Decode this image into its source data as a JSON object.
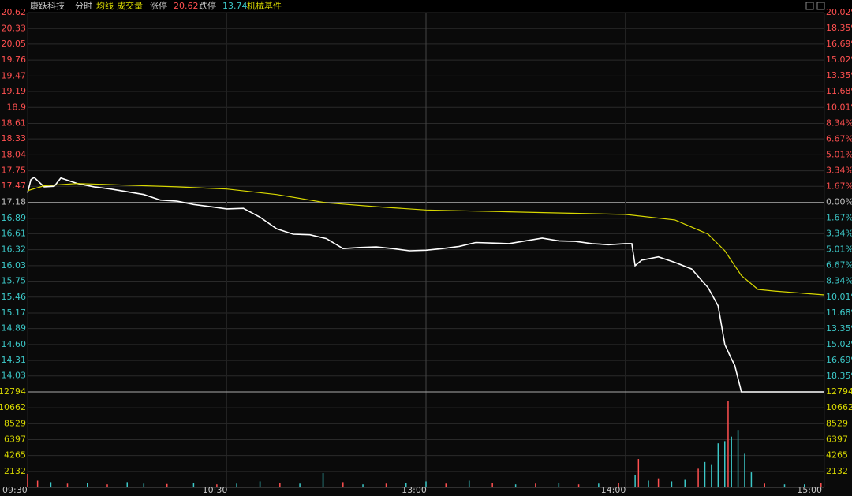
{
  "header": {
    "name": "康跃科技",
    "mode": "分时",
    "limit_up_label": "涨停",
    "limit_up": 20.62,
    "limit_down_label": "跌停",
    "limit_down": 13.74,
    "sector": "机械基件"
  },
  "chart_data": [
    {
      "type": "line",
      "xlim": [
        0,
        240
      ],
      "xticks": [
        {
          "value": 0,
          "label": "09:30"
        },
        {
          "value": 60,
          "label": "10:30"
        },
        {
          "value": 120,
          "label": "13:00"
        },
        {
          "value": 180,
          "label": "14:00"
        },
        {
          "value": 240,
          "label": "15:00"
        }
      ],
      "ylim": [
        13.74,
        20.62
      ],
      "yticks": [
        20.62,
        20.33,
        20.05,
        19.76,
        19.47,
        19.19,
        18.9,
        {
          "value": 18.61,
          "label": "18.61"
        },
        18.33,
        18.04,
        17.75,
        17.47,
        17.18,
        16.89,
        16.61,
        16.32,
        16.03,
        15.75,
        15.46,
        15.17,
        14.89,
        {
          "value": 14.6,
          "label": "14.60"
        },
        14.31,
        14.03
      ],
      "y2lim": [
        -20.02,
        20.02
      ],
      "y2ticks": [
        {
          "value": 20.02,
          "label": "20.02%"
        },
        {
          "value": 18.35,
          "label": "18.35%"
        },
        {
          "value": 16.69,
          "label": "16.69%"
        },
        {
          "value": 15.02,
          "label": "15.02%"
        },
        {
          "value": 13.35,
          "label": "13.35%"
        },
        {
          "value": 11.68,
          "label": "11.68%"
        },
        {
          "value": 10.01,
          "label": "10.01%"
        },
        {
          "value": 8.34,
          "label": "8.34%"
        },
        {
          "value": 6.67,
          "label": "6.67%"
        },
        {
          "value": 5.01,
          "label": "5.01%"
        },
        {
          "value": 3.34,
          "label": "3.34%"
        },
        {
          "value": 1.67,
          "label": "1.67%"
        },
        {
          "value": 0,
          "label": "0.00%"
        },
        {
          "value": -1.67,
          "label": "1.67%"
        },
        {
          "value": -3.34,
          "label": "3.34%"
        },
        {
          "value": -5.01,
          "label": "5.01%"
        },
        {
          "value": -6.67,
          "label": "6.67%"
        },
        {
          "value": -8.34,
          "label": "8.34%"
        },
        {
          "value": -10.01,
          "label": "10.01%"
        },
        {
          "value": -11.68,
          "label": "11.68%"
        },
        {
          "value": -13.35,
          "label": "13.35%"
        },
        {
          "value": -15.02,
          "label": "15.02%"
        },
        {
          "value": -16.69,
          "label": "16.69%"
        },
        {
          "value": -18.35,
          "label": "18.35%"
        }
      ],
      "up_color": "#ff5050",
      "down_color": "#3cc8c8",
      "flat_color": "#c0c0c0",
      "series": [
        {
          "color": "#ffffff",
          "x": [
            0,
            1,
            2,
            5,
            8,
            10,
            15,
            20,
            25,
            30,
            35,
            40,
            45,
            50,
            55,
            60,
            65,
            70,
            75,
            80,
            85,
            90,
            95,
            100,
            105,
            110,
            115,
            120,
            125,
            130,
            135,
            140,
            145,
            150,
            155,
            160,
            165,
            170,
            175,
            180,
            182,
            183,
            185,
            190,
            195,
            200,
            205,
            208,
            210,
            212,
            213,
            215,
            220,
            225,
            230,
            235,
            240
          ],
          "values": [
            17.35,
            17.59,
            17.63,
            17.46,
            17.47,
            17.62,
            17.52,
            17.46,
            17.42,
            17.37,
            17.32,
            17.22,
            17.2,
            17.14,
            17.1,
            17.06,
            17.07,
            16.91,
            16.7,
            16.6,
            16.59,
            16.52,
            16.34,
            16.36,
            16.37,
            16.34,
            16.3,
            16.31,
            16.34,
            16.38,
            16.45,
            16.44,
            16.43,
            16.48,
            16.53,
            16.48,
            16.47,
            16.43,
            16.41,
            16.43,
            16.43,
            16.03,
            16.13,
            16.19,
            16.09,
            15.97,
            15.63,
            15.3,
            14.6,
            14.34,
            14.22,
            13.74,
            13.74,
            13.74,
            13.74,
            13.74,
            13.74
          ]
        },
        {
          "name": "均线",
          "color": "#d8d800",
          "x": [
            0,
            5,
            15,
            30,
            45,
            60,
            75,
            90,
            105,
            120,
            150,
            180,
            195,
            205,
            210,
            215,
            220,
            225,
            240
          ],
          "values": [
            17.39,
            17.48,
            17.52,
            17.49,
            17.46,
            17.42,
            17.32,
            17.17,
            17.1,
            17.04,
            17.0,
            16.96,
            16.86,
            16.6,
            16.3,
            15.85,
            15.6,
            15.57,
            15.5
          ]
        }
      ]
    },
    {
      "type": "bar",
      "title": "成交量",
      "color": "#d8d800",
      "xlim": [
        0,
        240
      ],
      "ylim": [
        0,
        12794
      ],
      "yticks": [
        12794,
        10662,
        8529,
        6397,
        4265,
        2132
      ],
      "x": [
        0,
        3,
        7,
        12,
        18,
        24,
        30,
        35,
        42,
        50,
        57,
        63,
        70,
        76,
        82,
        89,
        95,
        101,
        108,
        114,
        120,
        126,
        133,
        140,
        147,
        153,
        160,
        166,
        172,
        178,
        183,
        184,
        187,
        190,
        194,
        198,
        202,
        204,
        206,
        208,
        210,
        211,
        212,
        214,
        216,
        218,
        222,
        228,
        234,
        239
      ],
      "values": [
        1800,
        900,
        700,
        500,
        600,
        400,
        700,
        500,
        450,
        600,
        400,
        500,
        800,
        600,
        500,
        1900,
        700,
        400,
        500,
        600,
        800,
        500,
        900,
        600,
        400,
        500,
        600,
        400,
        500,
        600,
        1600,
        3800,
        900,
        1200,
        800,
        1000,
        2500,
        3400,
        3000,
        5900,
        6200,
        11600,
        6800,
        7700,
        4500,
        2000,
        500,
        400,
        400,
        600
      ],
      "colors": [
        "#ff5050",
        "#ff5050",
        "#3cc8c8",
        "#ff5050",
        "#3cc8c8",
        "#ff5050",
        "#3cc8c8",
        "#3cc8c8",
        "#ff5050",
        "#3cc8c8",
        "#ff5050",
        "#3cc8c8",
        "#3cc8c8",
        "#ff5050",
        "#3cc8c8",
        "#3cc8c8",
        "#ff5050",
        "#3cc8c8",
        "#ff5050",
        "#3cc8c8",
        "#3cc8c8",
        "#ff5050",
        "#3cc8c8",
        "#ff5050",
        "#3cc8c8",
        "#ff5050",
        "#3cc8c8",
        "#ff5050",
        "#3cc8c8",
        "#ff5050",
        "#3cc8c8",
        "#ff5050",
        "#3cc8c8",
        "#ff5050",
        "#3cc8c8",
        "#3cc8c8",
        "#ff5050",
        "#3cc8c8",
        "#3cc8c8",
        "#3cc8c8",
        "#3cc8c8",
        "#ff5050",
        "#3cc8c8",
        "#3cc8c8",
        "#3cc8c8",
        "#3cc8c8",
        "#ff5050",
        "#3cc8c8",
        "#3cc8c8",
        "#ff5050"
      ]
    }
  ]
}
